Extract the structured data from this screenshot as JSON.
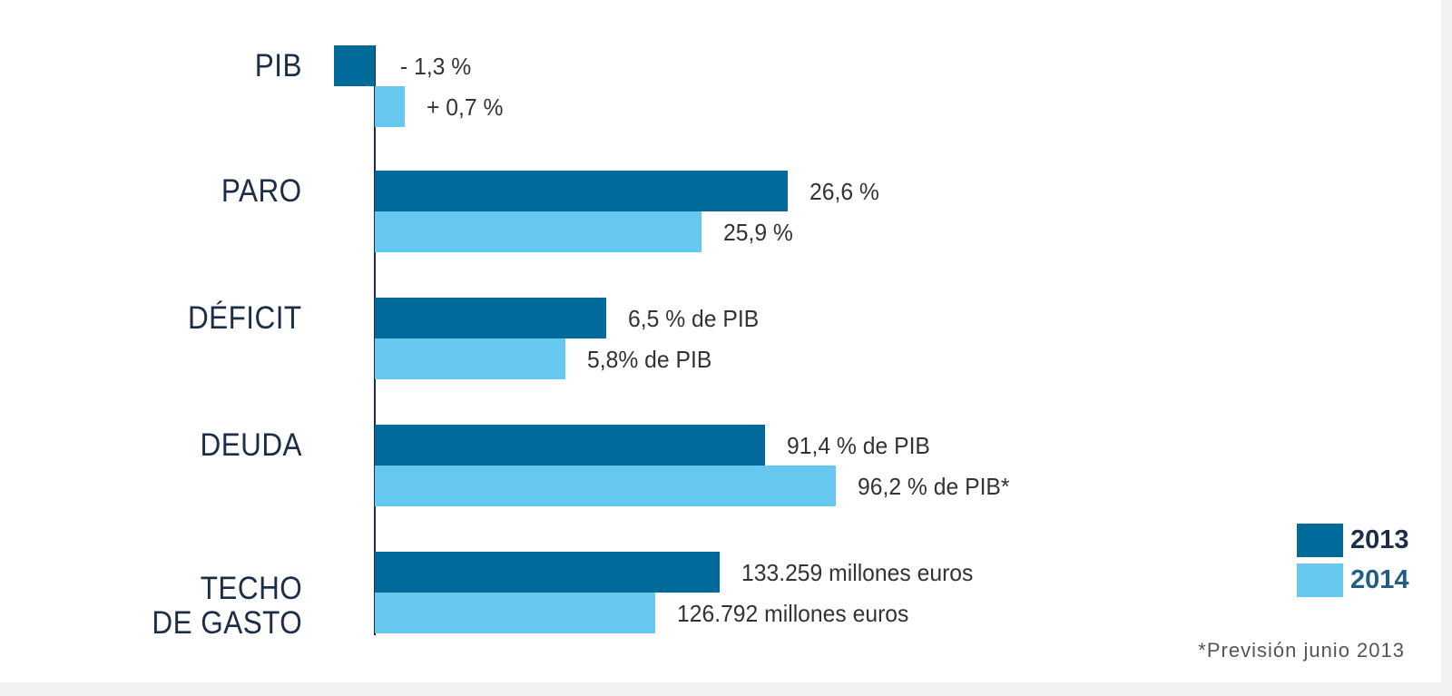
{
  "chart_data": {
    "type": "bar",
    "orientation": "horizontal",
    "title": "",
    "categories": [
      "PIB",
      "PARO",
      "DÉFICIT",
      "DEUDA",
      "TECHO\nDE GASTO"
    ],
    "series": [
      {
        "name": "2013",
        "color": "#006a9a",
        "values": [
          -1.3,
          26.6,
          6.5,
          91.4,
          133259
        ],
        "labels": [
          "- 1,3 %",
          "26,6 %",
          "6,5 % de PIB",
          "91,4 % de PIB",
          "133.259 millones euros"
        ]
      },
      {
        "name": "2014",
        "color": "#66c8ee",
        "values": [
          0.7,
          25.9,
          5.8,
          96.2,
          126792
        ],
        "labels": [
          "+ 0,7 %",
          "25,9 %",
          "5,8% de PIB",
          "96,2 % de PIB*",
          "126.792 millones euros"
        ]
      }
    ],
    "units": [
      "%",
      "%",
      "% de PIB",
      "% de PIB",
      "millones euros"
    ],
    "legend": {
      "placement": "bottom-right",
      "entries": [
        "2013",
        "2014"
      ]
    },
    "note": "*Previsión junio 2013",
    "grid": false
  }
}
